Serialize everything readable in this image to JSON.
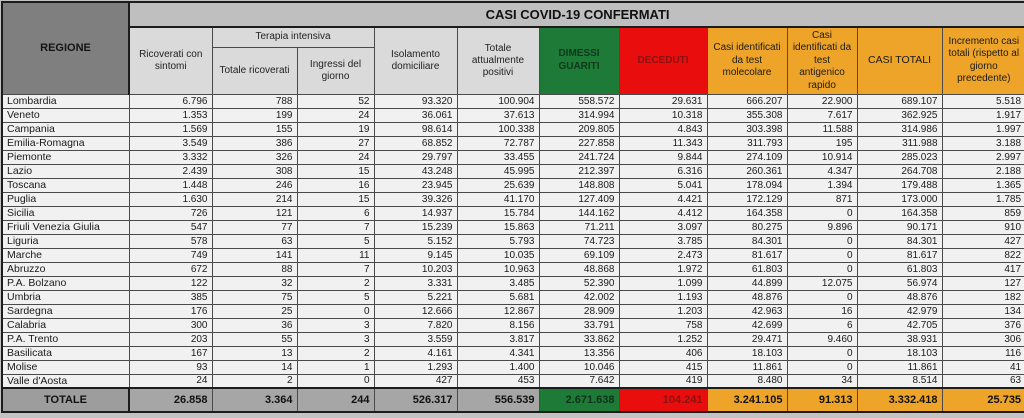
{
  "title": "CASI COVID-19 CONFERMATI",
  "header": {
    "regione": "REGIONE",
    "ricoverati": "Ricoverati con sintomi",
    "terapia_group": "Terapia intensiva",
    "terapia_totale": "Totale ricoverati",
    "terapia_ingressi": "Ingressi del giorno",
    "isolamento": "Isolamento domiciliare",
    "positivi": "Totale attualmente positivi",
    "dimessi": "DIMESSI GUARITI",
    "deceduti": "DECEDUTI",
    "molecolare": "Casi identificati da test molecolare",
    "antigenico": "Casi identificati da test antigenico rapido",
    "casi_totali": "CASI TOTALI",
    "incremento": "Incremento casi totali (rispetto al giorno precedente)"
  },
  "rows": [
    [
      "Lombardia",
      "6.796",
      "788",
      "52",
      "93.320",
      "100.904",
      "558.572",
      "29.631",
      "666.207",
      "22.900",
      "689.107",
      "5.518"
    ],
    [
      "Veneto",
      "1.353",
      "199",
      "24",
      "36.061",
      "37.613",
      "314.994",
      "10.318",
      "355.308",
      "7.617",
      "362.925",
      "1.917"
    ],
    [
      "Campania",
      "1.569",
      "155",
      "19",
      "98.614",
      "100.338",
      "209.805",
      "4.843",
      "303.398",
      "11.588",
      "314.986",
      "1.997"
    ],
    [
      "Emilia-Romagna",
      "3.549",
      "386",
      "27",
      "68.852",
      "72.787",
      "227.858",
      "11.343",
      "311.793",
      "195",
      "311.988",
      "3.188"
    ],
    [
      "Piemonte",
      "3.332",
      "326",
      "24",
      "29.797",
      "33.455",
      "241.724",
      "9.844",
      "274.109",
      "10.914",
      "285.023",
      "2.997"
    ],
    [
      "Lazio",
      "2.439",
      "308",
      "15",
      "43.248",
      "45.995",
      "212.397",
      "6.316",
      "260.361",
      "4.347",
      "264.708",
      "2.188"
    ],
    [
      "Toscana",
      "1.448",
      "246",
      "16",
      "23.945",
      "25.639",
      "148.808",
      "5.041",
      "178.094",
      "1.394",
      "179.488",
      "1.365"
    ],
    [
      "Puglia",
      "1.630",
      "214",
      "15",
      "39.326",
      "41.170",
      "127.409",
      "4.421",
      "172.129",
      "871",
      "173.000",
      "1.785"
    ],
    [
      "Sicilia",
      "726",
      "121",
      "6",
      "14.937",
      "15.784",
      "144.162",
      "4.412",
      "164.358",
      "0",
      "164.358",
      "859"
    ],
    [
      "Friuli Venezia Giulia",
      "547",
      "77",
      "7",
      "15.239",
      "15.863",
      "71.211",
      "3.097",
      "80.275",
      "9.896",
      "90.171",
      "910"
    ],
    [
      "Liguria",
      "578",
      "63",
      "5",
      "5.152",
      "5.793",
      "74.723",
      "3.785",
      "84.301",
      "0",
      "84.301",
      "427"
    ],
    [
      "Marche",
      "749",
      "141",
      "11",
      "9.145",
      "10.035",
      "69.109",
      "2.473",
      "81.617",
      "0",
      "81.617",
      "822"
    ],
    [
      "Abruzzo",
      "672",
      "88",
      "7",
      "10.203",
      "10.963",
      "48.868",
      "1.972",
      "61.803",
      "0",
      "61.803",
      "417"
    ],
    [
      "P.A. Bolzano",
      "122",
      "32",
      "2",
      "3.331",
      "3.485",
      "52.390",
      "1.099",
      "44.899",
      "12.075",
      "56.974",
      "127"
    ],
    [
      "Umbria",
      "385",
      "75",
      "5",
      "5.221",
      "5.681",
      "42.002",
      "1.193",
      "48.876",
      "0",
      "48.876",
      "182"
    ],
    [
      "Sardegna",
      "176",
      "25",
      "0",
      "12.666",
      "12.867",
      "28.909",
      "1.203",
      "42.963",
      "16",
      "42.979",
      "134"
    ],
    [
      "Calabria",
      "300",
      "36",
      "3",
      "7.820",
      "8.156",
      "33.791",
      "758",
      "42.699",
      "6",
      "42.705",
      "376"
    ],
    [
      "P.A. Trento",
      "203",
      "55",
      "3",
      "3.559",
      "3.817",
      "33.862",
      "1.252",
      "29.471",
      "9.460",
      "38.931",
      "306"
    ],
    [
      "Basilicata",
      "167",
      "13",
      "2",
      "4.161",
      "4.341",
      "13.356",
      "406",
      "18.103",
      "0",
      "18.103",
      "116"
    ],
    [
      "Molise",
      "93",
      "14",
      "1",
      "1.293",
      "1.400",
      "10.046",
      "415",
      "11.861",
      "0",
      "11.861",
      "41"
    ],
    [
      "Valle d'Aosta",
      "24",
      "2",
      "0",
      "427",
      "453",
      "7.642",
      "419",
      "8.480",
      "34",
      "8.514",
      "63"
    ]
  ],
  "totale": [
    "TOTALE",
    "26.858",
    "3.364",
    "244",
    "526.317",
    "556.539",
    "2.671.638",
    "104.241",
    "3.241.105",
    "91.313",
    "3.332.418",
    "25.735"
  ],
  "colors": {
    "green": "#1e7b37",
    "red": "#e90d0d",
    "orange": "#eda428",
    "title_bar_gray": "#bfbfbf",
    "regione_gray": "#7f7f7f",
    "subheader_gray": "#dadada",
    "row_bg": "#f1f1f1",
    "totale_gray": "#a6a6a6"
  }
}
